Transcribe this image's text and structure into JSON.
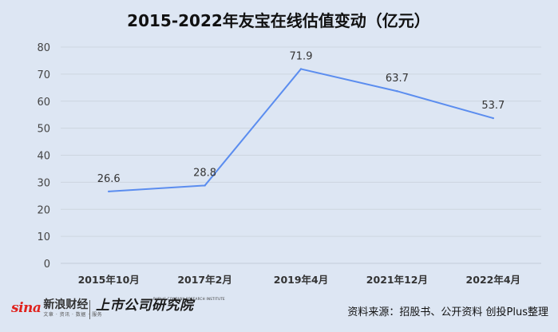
{
  "chart_data": {
    "type": "line",
    "title": "2015-2022年友宝在线估值变动（亿元）",
    "categories": [
      "2015年10月",
      "2017年2月",
      "2019年4月",
      "2021年12月",
      "2022年4月"
    ],
    "series": [
      {
        "values": [
          26.6,
          28.8,
          71.9,
          63.7,
          53.7
        ]
      }
    ],
    "data_labels": [
      "26.6",
      "28.8",
      "71.9",
      "63.7",
      "53.7"
    ],
    "y_ticks": [
      "0",
      "10",
      "20",
      "30",
      "40",
      "50",
      "60",
      "70",
      "80"
    ],
    "ylim": [
      0,
      80
    ],
    "grid": true,
    "line_color": "#5b8def"
  },
  "footer": {
    "sina_mark": "sina",
    "sina_name": "新浪财经",
    "sina_sub": "文章 · 资讯 · 数据 · 服务",
    "research_name": "上市公司研究院",
    "research_en": "PUBLIC COMPANY RESEARCH INSTITUTE",
    "source": "资料来源：招股书、公开资料 创投Plus整理"
  }
}
